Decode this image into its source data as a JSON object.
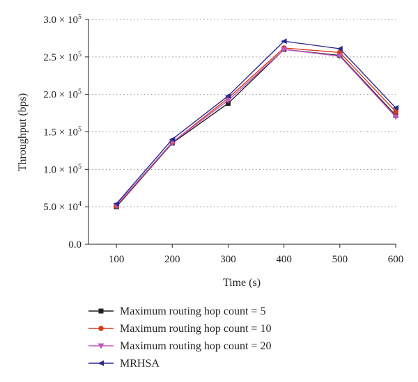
{
  "chart_data": {
    "type": "line",
    "xlabel": "Time (s)",
    "ylabel": "Throughput (bps)",
    "x": [
      100,
      200,
      300,
      400,
      500,
      600
    ],
    "xlim": [
      50,
      600
    ],
    "ylim": [
      0,
      300000
    ],
    "x_ticks": [
      "100",
      "200",
      "300",
      "400",
      "500",
      "600"
    ],
    "y_ticks": [
      {
        "value": 0,
        "label": "0.0"
      },
      {
        "value": 50000,
        "label": "5.0 × 10",
        "exp": "4"
      },
      {
        "value": 100000,
        "label": "1.0 × 10",
        "exp": "5"
      },
      {
        "value": 150000,
        "label": "1.5 × 10",
        "exp": "5"
      },
      {
        "value": 200000,
        "label": "2.0 × 10",
        "exp": "5"
      },
      {
        "value": 250000,
        "label": "2.5 × 10",
        "exp": "5"
      },
      {
        "value": 300000,
        "label": "3.0 × 10",
        "exp": "5"
      }
    ],
    "grid": "horizontal-dotted",
    "legend_position": "bottom",
    "series": [
      {
        "name": "Maximum routing hop count = 5",
        "color": "#231f20",
        "marker": "square",
        "values": [
          50000,
          135000,
          188000,
          260000,
          252000,
          172000
        ]
      },
      {
        "name": "Maximum routing hop count = 10",
        "color": "#d63a1e",
        "marker": "circle",
        "values": [
          51000,
          136000,
          195000,
          262000,
          256000,
          177000
        ]
      },
      {
        "name": "Maximum routing hop count = 20",
        "color": "#c158c4",
        "marker": "triangle-down",
        "values": [
          52000,
          136000,
          192000,
          260000,
          251000,
          170000
        ]
      },
      {
        "name": "MRHSA",
        "color": "#2b2a8c",
        "marker": "triangle-left",
        "values": [
          54000,
          140000,
          198000,
          271000,
          261000,
          182000
        ]
      }
    ]
  }
}
